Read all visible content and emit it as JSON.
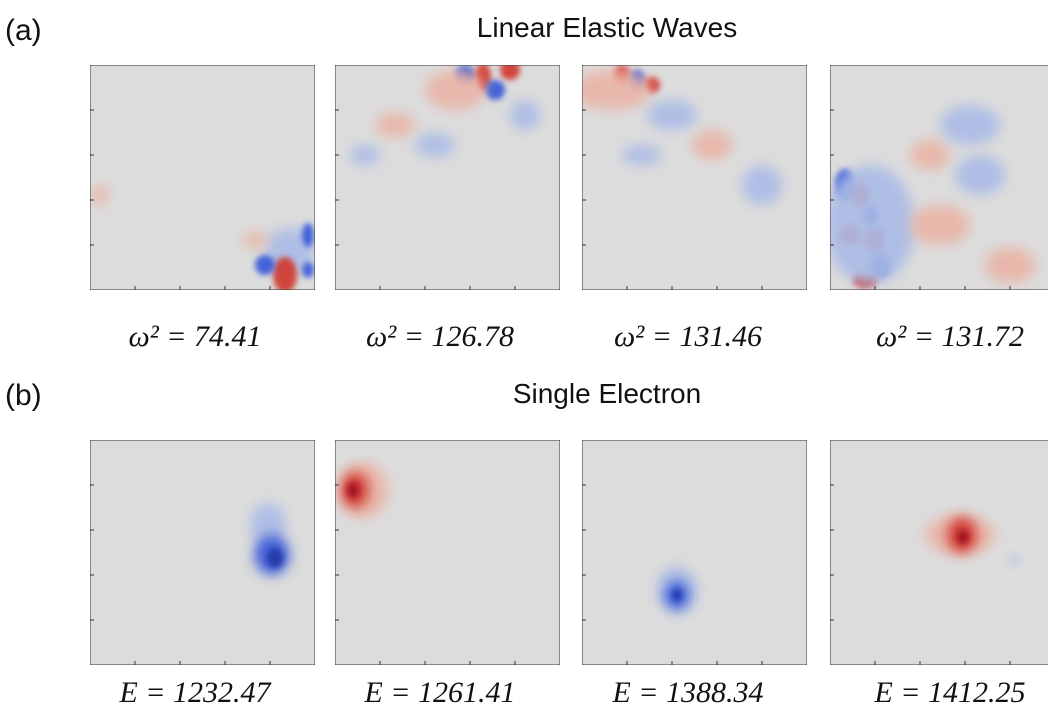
{
  "panels": [
    {
      "label": "(a)",
      "title": "Linear Elastic Waves",
      "captions": [
        "ω² = 74.41",
        "ω² = 126.78",
        "ω² = 131.46",
        "ω² = 131.72"
      ]
    },
    {
      "label": "(b)",
      "title": "Single Electron",
      "captions": [
        "E = 1232.47",
        "E = 1261.41",
        "E = 1388.34",
        "E = 1412.25"
      ]
    }
  ]
}
